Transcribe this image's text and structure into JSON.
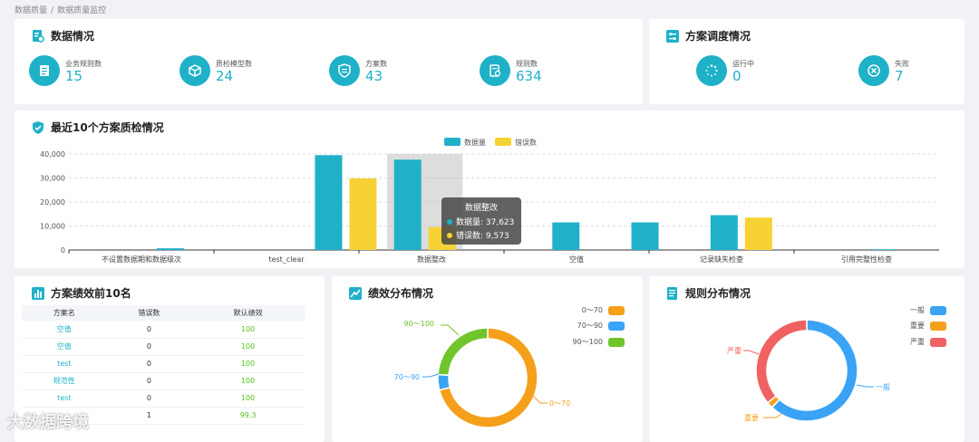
{
  "breadcrumb": {
    "parent": "数据质量",
    "current": "数据质量监控"
  },
  "data_overview": {
    "title": "数据情况",
    "stats": [
      {
        "label": "业务规则数",
        "value": "15",
        "icon": "document-icon"
      },
      {
        "label": "质检模型数",
        "value": "24",
        "icon": "cube-icon"
      },
      {
        "label": "方案数",
        "value": "43",
        "icon": "shield-list-icon"
      },
      {
        "label": "规则数",
        "value": "634",
        "icon": "rule-doc-icon"
      }
    ]
  },
  "schedule": {
    "title": "方案调度情况",
    "stats": [
      {
        "label": "运行中",
        "value": "0",
        "icon": "spinner-icon"
      },
      {
        "label": "失败",
        "value": "7",
        "icon": "close-circle-icon"
      }
    ]
  },
  "recent_chart": {
    "title": "最近10个方案质检情况",
    "tooltip": {
      "title": "数据整改",
      "line1": "数据量: 37,623",
      "line2": "错误数: 9,573"
    }
  },
  "rank": {
    "title": "方案绩效前10名",
    "headers": [
      "方案名",
      "错误数",
      "默认绩效"
    ],
    "rows": [
      [
        "空值",
        "0",
        "100"
      ],
      [
        "空值",
        "0",
        "100"
      ],
      [
        "test",
        "0",
        "100"
      ],
      [
        "规范性",
        "0",
        "100"
      ],
      [
        "test",
        "0",
        "100"
      ],
      [
        "",
        "1",
        "99.3"
      ]
    ]
  },
  "perf": {
    "title": "绩效分布情况",
    "legend": [
      "0～70",
      "70～90",
      "90～100"
    ],
    "labels": {
      "a": "0～70",
      "b": "70～90",
      "c": "90～100"
    }
  },
  "rules": {
    "title": "规则分布情况",
    "legend": [
      "一般",
      "重要",
      "严重"
    ],
    "labels": {
      "a": "一般",
      "b": "重要",
      "c": "严重"
    }
  },
  "watermark": "大数据跨境",
  "colors": {
    "accent": "#1fb1c8",
    "yellow": "#f7d234",
    "orange": "#f5a01a",
    "blue": "#3aa3f5",
    "green": "#6fc52b",
    "red": "#f06262"
  },
  "chart_data": [
    {
      "type": "bar",
      "title": "最近10个方案质检情况",
      "categories": [
        "不设置数据期和数据级次",
        "",
        "test_clear",
        "",
        "数据整改",
        "",
        "空值",
        "",
        "记录缺失检查",
        "",
        "引用完整性检查"
      ],
      "category_labels_shown": [
        "不设置数据期和数据级次",
        "test_clear",
        "数据整改",
        "空值",
        "记录缺失检查",
        "引用完整性检查"
      ],
      "series": [
        {
          "name": "数据量",
          "values": [
            0,
            700,
            0,
            39500,
            37623,
            0,
            11500,
            11500,
            14500,
            0,
            300
          ]
        },
        {
          "name": "错误数",
          "values": [
            0,
            0,
            0,
            29800,
            9573,
            0,
            0,
            0,
            13500,
            0,
            0
          ]
        }
      ],
      "yticks": [
        "0",
        "10,000",
        "20,000",
        "30,000",
        "40,000"
      ],
      "ylim": [
        0,
        40000
      ],
      "legend": "top-center"
    },
    {
      "type": "pie",
      "title": "绩效分布情况",
      "categories": [
        "0～70",
        "70～90",
        "90～100"
      ],
      "values": [
        71,
        5,
        24
      ]
    },
    {
      "type": "pie",
      "title": "规则分布情况",
      "categories": [
        "一般",
        "重要",
        "严重"
      ],
      "values": [
        62,
        2,
        36
      ]
    }
  ]
}
